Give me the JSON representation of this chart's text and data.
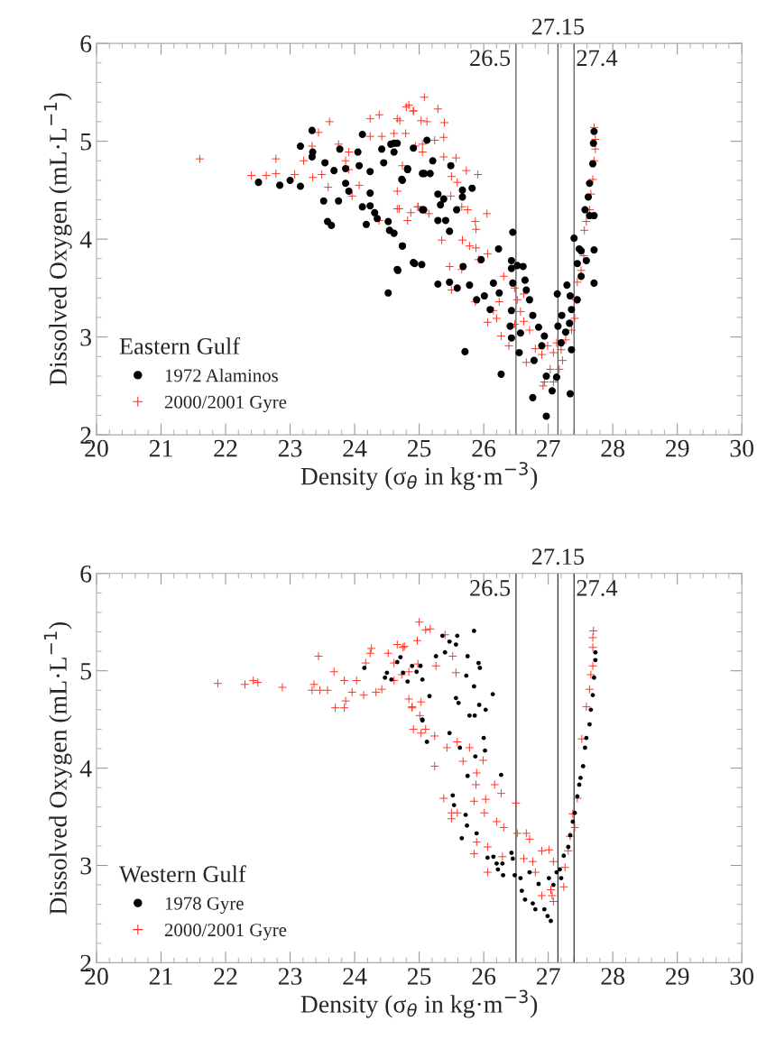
{
  "chart_data": [
    {
      "type": "scatter",
      "xlabel": "Density (σ$_{θ}$ in kg·m$^{−3}$)",
      "ylabel": "Dissolved Oxygen (mL·L$^{−1}$)",
      "legend_title": "Eastern Gulf",
      "legend": "bottom left",
      "grid": false,
      "xlim": [
        20,
        30
      ],
      "ylim": [
        2,
        6
      ],
      "xticks": [
        20,
        21,
        22,
        23,
        24,
        25,
        26,
        27,
        28,
        29,
        30
      ],
      "yticks": [
        2,
        3,
        4,
        5,
        6
      ],
      "ref_lines": [
        {
          "axis": "x",
          "value": 26.5,
          "label": "26.5",
          "color": "#555555"
        },
        {
          "axis": "x",
          "value": 27.15,
          "label": "27.15",
          "color": "#555555"
        },
        {
          "axis": "x",
          "value": 27.4,
          "label": "27.4",
          "color": "#555555"
        }
      ],
      "series": [
        {
          "name": "1972 Alaminos",
          "color": "#000000",
          "marker": "circle",
          "x": [
            22.51,
            22.84,
            23.0,
            23.16,
            23.34,
            23.16,
            23.35,
            23.34,
            23.54,
            23.68,
            23.86,
            23.77,
            23.58,
            23.64,
            23.52,
            23.75,
            23.86,
            23.91,
            24.05,
            24.07,
            24.12,
            24.12,
            24.24,
            24.24,
            24.18,
            24.31,
            24.35,
            24.52,
            24.54,
            24.61,
            24.74,
            24.67,
            24.91,
            24.52,
            24.24,
            24.45,
            24.56,
            24.61,
            24.61,
            24.42,
            24.82,
            24.74,
            24.91,
            25.05,
            25.05,
            24.66,
            25.12,
            24.73,
            24.82,
            25.08,
            25.17,
            25.21,
            25.49,
            25.82,
            25.67,
            25.67,
            25.38,
            25.33,
            25.29,
            25.07,
            25.58,
            25.29,
            25.41,
            25.47,
            24.74,
            24.66,
            24.93,
            25.04,
            25.29,
            25.47,
            25.59,
            25.78,
            25.89,
            26.01,
            26.1,
            26.15,
            26.24,
            26.23,
            25.96,
            25.68,
            25.71,
            26.27,
            26.45,
            26.43,
            26.43,
            26.45,
            26.52,
            26.61,
            26.64,
            26.66,
            26.43,
            26.41,
            26.43,
            26.55,
            26.57,
            26.71,
            26.76,
            26.85,
            26.94,
            26.9,
            26.78,
            26.76,
            26.97,
            27.06,
            26.97,
            27.13,
            27.15,
            27.14,
            27.21,
            27.2,
            27.27,
            27.29,
            27.34,
            27.36,
            27.34,
            27.4,
            27.45,
            27.48,
            27.51,
            27.59,
            27.71,
            27.71,
            27.57,
            27.64,
            27.71,
            27.62,
            27.64,
            27.69,
            27.7,
            27.71,
            27.45,
            27.36,
            27.33,
            27.51
          ],
          "values": [
            4.58,
            4.55,
            4.6,
            4.54,
            5.11,
            4.95,
            4.89,
            4.84,
            4.78,
            4.7,
            4.72,
            4.92,
            4.18,
            4.14,
            4.39,
            4.39,
            4.57,
            4.49,
            4.89,
            4.75,
            5.07,
            4.33,
            4.47,
            4.34,
            4.15,
            4.27,
            4.21,
            4.18,
            4.09,
            4.06,
            3.93,
            3.68,
            3.76,
            3.45,
            4.69,
            4.78,
            4.97,
            4.98,
            4.89,
            4.92,
            4.71,
            4.6,
            4.93,
            4.67,
            4.3,
            4.98,
            5.01,
            4.61,
            4.72,
            4.67,
            4.67,
            4.8,
            4.75,
            4.52,
            4.5,
            4.43,
            4.41,
            4.35,
            4.46,
            4.3,
            4.3,
            4.19,
            4.19,
            4.08,
            3.93,
            3.69,
            3.75,
            3.74,
            3.54,
            3.56,
            3.5,
            3.53,
            3.38,
            3.42,
            3.28,
            3.55,
            3.45,
            3.9,
            3.79,
            3.72,
            2.85,
            2.62,
            4.07,
            3.78,
            3.7,
            3.55,
            3.73,
            3.72,
            3.58,
            3.48,
            3.27,
            3.11,
            2.99,
            2.84,
            3.04,
            3.38,
            3.22,
            3.1,
            3.01,
            2.91,
            2.76,
            2.38,
            2.6,
            2.45,
            2.19,
            2.59,
            3.11,
            3.44,
            3.22,
            2.94,
            3.05,
            3.53,
            3.42,
            2.87,
            2.42,
            4.01,
            3.75,
            3.9,
            3.88,
            3.78,
            3.89,
            3.55,
            4.3,
            4.24,
            4.24,
            4.43,
            4.57,
            4.77,
            4.98,
            5.1,
            3.38,
            3.28,
            3.14,
            3.62
          ]
        },
        {
          "name": "2000/2001 Gyre",
          "color": "#ff3020",
          "marker": "cross",
          "x": [
            21.6,
            22.4,
            22.63,
            22.78,
            22.78,
            23.07,
            23.21,
            23.44,
            23.61,
            23.34,
            23.49,
            23.35,
            23.59,
            23.75,
            23.91,
            23.86,
            24.07,
            23.96,
            24.24,
            24.38,
            24.24,
            24.42,
            24.66,
            24.8,
            24.91,
            24.61,
            24.79,
            24.74,
            25.05,
            25.05,
            24.69,
            24.87,
            24.98,
            24.38,
            23.91,
            25.08,
            24.84,
            24.91,
            25.29,
            25.03,
            25.12,
            25.39,
            24.7,
            25.38,
            25.24,
            24.94,
            25.38,
            25.57,
            25.73,
            25.91,
            25.5,
            25.59,
            25.66,
            25.75,
            25.87,
            25.88,
            26.05,
            25.49,
            25.15,
            24.98,
            24.66,
            24.82,
            24.66,
            25.35,
            25.67,
            25.78,
            25.88,
            25.92,
            26.06,
            25.47,
            25.66,
            25.5,
            25.87,
            26.06,
            26.2,
            26.15,
            26.27,
            26.39,
            26.31,
            26.24,
            26.52,
            26.57,
            26.62,
            26.71,
            26.66,
            26.8,
            26.9,
            26.94,
            26.92,
            27.08,
            27.03,
            27.17,
            27.22,
            27.2,
            27.08,
            26.99,
            27.13,
            27.27,
            27.36,
            27.41,
            27.43,
            27.45,
            27.51,
            27.55,
            27.56,
            27.59,
            27.64,
            27.66,
            27.69,
            27.71,
            27.73,
            27.71,
            27.73,
            26.48,
            26.62,
            26.48
          ],
          "values": [
            4.82,
            4.65,
            4.65,
            4.82,
            4.67,
            4.66,
            4.8,
            5.09,
            5.2,
            4.95,
            4.66,
            4.63,
            4.53,
            4.97,
            4.89,
            4.8,
            4.55,
            4.44,
            5.23,
            5.27,
            5.05,
            5.05,
            5.23,
            5.35,
            5.31,
            5.08,
            5.08,
            4.75,
            4.97,
            4.89,
            4.31,
            4.27,
            4.33,
            4.19,
            4.71,
            5.45,
            5.37,
            5.31,
            5.33,
            5.21,
            5.2,
            5.19,
            5.21,
            5.04,
            5.01,
            4.95,
            4.84,
            4.83,
            4.7,
            4.66,
            4.64,
            4.58,
            4.33,
            4.3,
            4.18,
            4.1,
            4.26,
            4.44,
            4.26,
            4.33,
            4.49,
            4.19,
            4.31,
            3.99,
            3.99,
            3.93,
            3.91,
            3.79,
            3.85,
            3.72,
            3.69,
            3.48,
            3.36,
            3.15,
            3.19,
            3.27,
            3.01,
            2.91,
            3.62,
            3.36,
            3.38,
            3.26,
            3.16,
            3.07,
            2.74,
            2.88,
            2.82,
            2.54,
            2.5,
            2.54,
            2.67,
            2.67,
            2.76,
            2.87,
            2.84,
            2.91,
            2.94,
            2.97,
            3.07,
            3.19,
            3.38,
            3.56,
            3.68,
            3.83,
            4.09,
            4.18,
            4.3,
            4.46,
            4.61,
            4.8,
            4.92,
            5.14,
            5.02,
            3.5,
            3.44,
            3.13
          ]
        }
      ]
    },
    {
      "type": "scatter",
      "xlabel": "Density (σ$_{θ}$ in kg·m$^{−3}$)",
      "ylabel": "Dissolved Oxygen (mL·L$^{−1}$)",
      "legend_title": "Western Gulf",
      "legend": "bottom left",
      "grid": false,
      "xlim": [
        20,
        30
      ],
      "ylim": [
        2,
        6
      ],
      "xticks": [
        20,
        21,
        22,
        23,
        24,
        25,
        26,
        27,
        28,
        29,
        30
      ],
      "yticks": [
        2,
        3,
        4,
        5,
        6
      ],
      "ref_lines": [
        {
          "axis": "x",
          "value": 26.5,
          "label": "26.5",
          "color": "#333333"
        },
        {
          "axis": "x",
          "value": 27.15,
          "label": "27.15",
          "color": "#333333"
        },
        {
          "axis": "x",
          "value": 27.4,
          "label": "27.4",
          "color": "#333333"
        }
      ],
      "series": [
        {
          "name": "1978 Gyre",
          "color": "#000000",
          "marker": "circle",
          "x": [
            24.15,
            24.47,
            24.5,
            24.57,
            24.66,
            24.71,
            24.75,
            24.82,
            24.89,
            24.96,
            25.02,
            25.05,
            25.05,
            25.36,
            25.47,
            25.59,
            25.85,
            25.4,
            25.26,
            25.57,
            25.75,
            25.92,
            25.94,
            25.73,
            25.85,
            26.14,
            25.57,
            25.61,
            25.93,
            26.03,
            25.78,
            25.86,
            25.16,
            25.05,
            25.12,
            25.47,
            25.63,
            26.0,
            26.02,
            25.87,
            25.75,
            26.27,
            25.52,
            25.54,
            25.72,
            25.74,
            25.66,
            25.89,
            26.06,
            26.15,
            26.2,
            26.29,
            26.22,
            26.3,
            26.43,
            26.45,
            26.48,
            26.57,
            26.59,
            26.64,
            26.71,
            26.8,
            26.76,
            26.85,
            26.94,
            26.99,
            27.04,
            27.01,
            27.08,
            27.13,
            27.2,
            27.18,
            27.24,
            27.31,
            27.34,
            27.38,
            27.41,
            27.45,
            27.48,
            27.5,
            27.54,
            27.57,
            27.59,
            27.64,
            27.66,
            27.69,
            27.71,
            27.73,
            27.73
          ],
          "values": [
            5.03,
            4.93,
            4.98,
            4.91,
            5.09,
            5.14,
            4.98,
            4.89,
            5.05,
            4.99,
            5.05,
            4.91,
            4.5,
            5.36,
            5.3,
            5.36,
            5.41,
            5.19,
            5.15,
            5.27,
            5.15,
            5.08,
            5.03,
            4.95,
            4.84,
            4.76,
            4.72,
            4.67,
            4.65,
            4.6,
            4.54,
            4.54,
            4.74,
            4.49,
            4.27,
            4.36,
            4.21,
            4.31,
            4.18,
            4.12,
            3.92,
            3.93,
            3.72,
            3.62,
            3.52,
            3.41,
            3.28,
            3.33,
            3.08,
            3.09,
            3.02,
            3.02,
            2.96,
            2.9,
            3.13,
            3.07,
            2.9,
            2.87,
            2.74,
            2.65,
            2.93,
            2.55,
            2.61,
            2.81,
            2.55,
            2.48,
            2.43,
            2.87,
            2.8,
            2.93,
            2.87,
            2.96,
            3.1,
            3.19,
            3.31,
            3.45,
            3.54,
            3.71,
            3.83,
            3.9,
            4.02,
            4.21,
            4.31,
            4.45,
            4.6,
            4.75,
            4.93,
            5.11,
            5.19
          ]
        },
        {
          "name": "2000/2001 Gyre",
          "color": "#ff3020",
          "marker": "cross",
          "x": [
            21.88,
            22.3,
            22.43,
            22.5,
            22.88,
            23.34,
            23.37,
            23.44,
            23.46,
            23.58,
            23.68,
            23.7,
            23.84,
            23.86,
            23.84,
            23.96,
            24.03,
            24.14,
            24.17,
            24.24,
            24.26,
            24.33,
            24.52,
            24.66,
            24.77,
            24.61,
            25.0,
            24.97,
            24.84,
            24.89,
            24.91,
            25.03,
            24.42,
            24.61,
            25.1,
            25.17,
            25.4,
            24.75,
            24.73,
            24.84,
            24.98,
            25.26,
            25.52,
            25.57,
            24.89,
            25.03,
            25.01,
            25.1,
            25.24,
            25.43,
            25.59,
            25.78,
            25.99,
            25.68,
            25.24,
            25.89,
            25.88,
            25.38,
            25.5,
            25.59,
            25.5,
            25.85,
            26.01,
            26.17,
            26.27,
            26.03,
            26.5,
            26.2,
            26.31,
            25.89,
            26.06,
            25.85,
            26.06,
            26.29,
            26.52,
            26.66,
            26.71,
            26.62,
            26.76,
            26.9,
            27.01,
            27.08,
            26.8,
            26.9,
            27.06,
            27.08,
            27.04,
            27.24,
            27.26,
            27.31,
            27.34,
            27.41,
            27.38,
            27.45,
            27.52,
            27.59,
            27.64,
            27.66,
            27.69,
            27.69,
            27.69,
            27.7
          ],
          "values": [
            4.87,
            4.86,
            4.9,
            4.88,
            4.83,
            4.8,
            4.86,
            5.15,
            4.8,
            4.8,
            4.99,
            4.62,
            4.9,
            4.69,
            4.62,
            4.78,
            4.9,
            4.75,
            5.08,
            5.18,
            5.23,
            4.78,
            5.18,
            5.27,
            5.25,
            5.08,
            5.5,
            5.31,
            4.71,
            4.62,
            4.4,
            4.36,
            4.81,
            4.9,
            5.42,
            5.43,
            5.37,
            5.24,
            4.96,
            4.99,
            5.07,
            5.05,
            5.15,
            4.98,
            4.63,
            4.68,
            4.54,
            4.4,
            4.33,
            4.21,
            4.27,
            4.21,
            4.08,
            4.07,
            4.02,
            3.95,
            3.83,
            3.69,
            3.54,
            3.54,
            3.48,
            3.66,
            3.54,
            3.83,
            3.74,
            3.68,
            3.64,
            3.45,
            3.39,
            3.24,
            3.19,
            3.12,
            2.93,
            3.09,
            3.33,
            3.33,
            3.27,
            3.07,
            3.04,
            3.15,
            3.16,
            3.04,
            2.93,
            2.69,
            2.69,
            2.63,
            2.75,
            2.78,
            2.98,
            3.15,
            3.3,
            3.39,
            3.53,
            3.69,
            4.3,
            4.63,
            4.81,
            4.96,
            5.05,
            5.24,
            5.34,
            5.41
          ]
        }
      ]
    }
  ]
}
